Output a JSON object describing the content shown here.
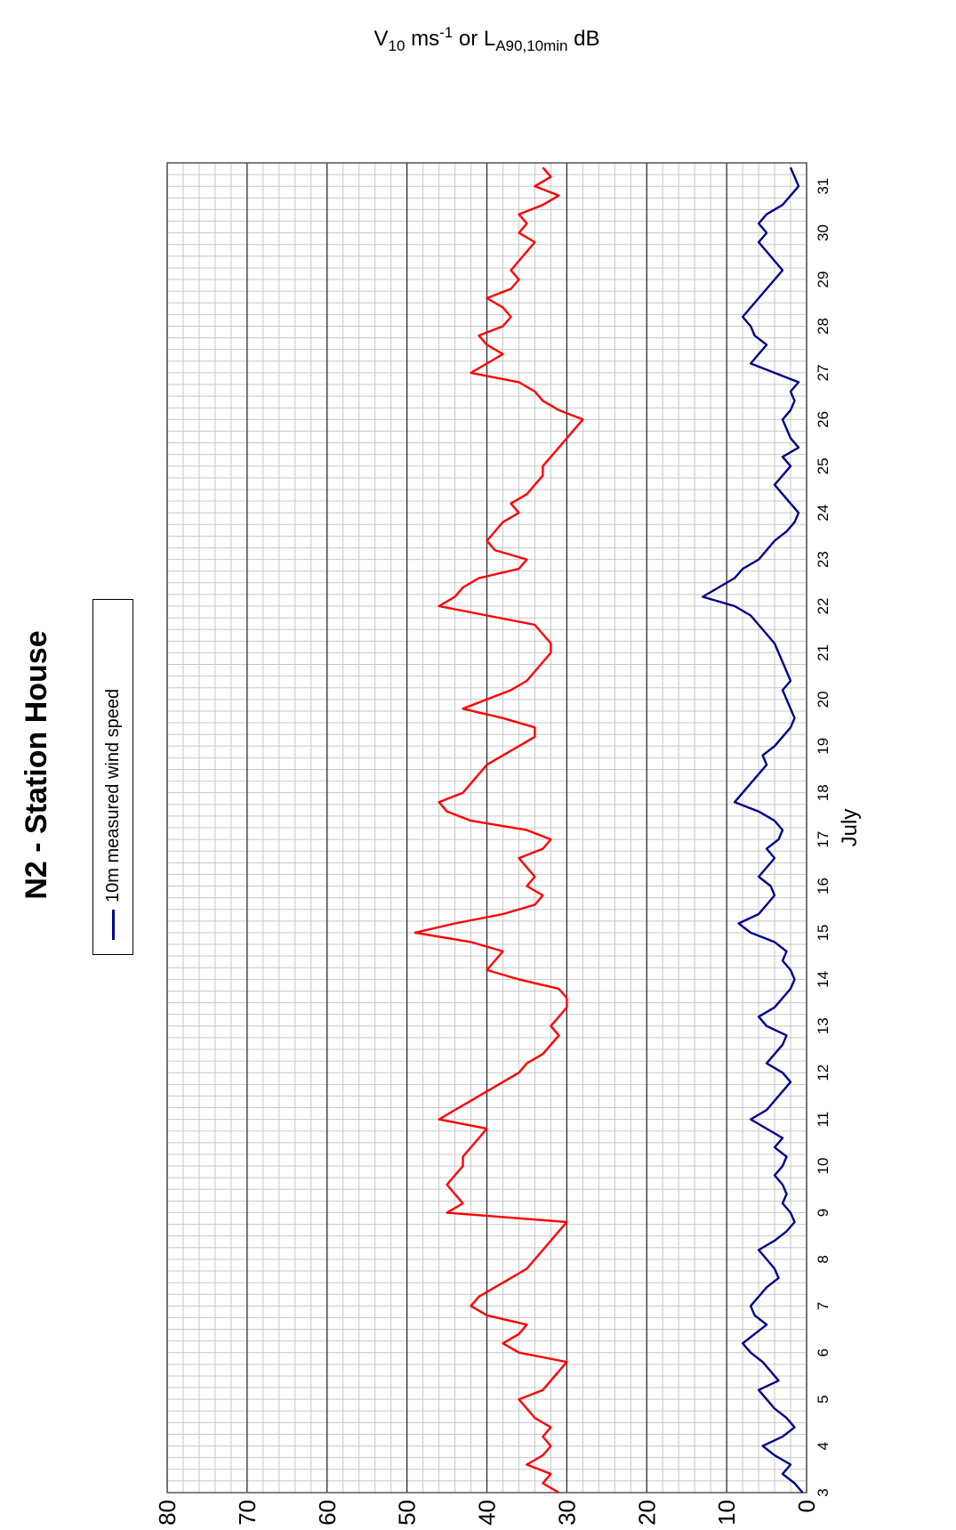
{
  "title": "N2 - Station House",
  "legend_label": "10m measured wind speed",
  "x_axis_label": "July",
  "y_axis_label": {
    "v": "V",
    "v_sub": "10",
    "unit_main": " ms",
    "unit_sup": "-1",
    "or": " or  L",
    "l_sub": "A90,10min",
    "db": " dB"
  },
  "chart_data": {
    "type": "line",
    "title": "N2 - Station House",
    "xlabel": "July",
    "ylabel": "V10 ms-1 or LA90,10min dB",
    "xlim": [
      3,
      31.5
    ],
    "ylim": [
      0,
      80
    ],
    "x_ticks": [
      "3",
      "4",
      "5",
      "6",
      "7",
      "8",
      "9",
      "10",
      "11",
      "12",
      "13",
      "14",
      "15",
      "16",
      "17",
      "18",
      "19",
      "20",
      "21",
      "22",
      "23",
      "24",
      "25",
      "26",
      "27",
      "28",
      "29",
      "30",
      "31"
    ],
    "y_ticks": [
      "0",
      "10",
      "20",
      "30",
      "40",
      "50",
      "60",
      "70",
      "80"
    ],
    "grid": true,
    "legend_position": "top-center",
    "colors": {
      "wind": "#00008b",
      "noise": "#ff0000"
    },
    "series": [
      {
        "name": "10m measured wind speed",
        "x": [
          3.0,
          3.2,
          3.4,
          3.6,
          3.8,
          4.0,
          4.2,
          4.4,
          4.6,
          4.8,
          5.0,
          5.2,
          5.4,
          5.6,
          5.8,
          6.0,
          6.2,
          6.4,
          6.6,
          6.8,
          7.0,
          7.2,
          7.4,
          7.6,
          7.8,
          8.0,
          8.2,
          8.4,
          8.6,
          8.8,
          9.0,
          9.2,
          9.4,
          9.6,
          9.8,
          10.0,
          10.2,
          10.4,
          10.6,
          10.8,
          11.0,
          11.2,
          11.4,
          11.6,
          11.8,
          12.0,
          12.2,
          12.4,
          12.6,
          12.8,
          13.0,
          13.2,
          13.4,
          13.6,
          13.8,
          14.0,
          14.2,
          14.4,
          14.6,
          14.8,
          15.0,
          15.2,
          15.4,
          15.6,
          15.8,
          16.0,
          16.2,
          16.4,
          16.6,
          16.8,
          17.0,
          17.2,
          17.4,
          17.6,
          17.8,
          18.0,
          18.2,
          18.4,
          18.6,
          18.8,
          19.0,
          19.2,
          19.4,
          19.6,
          19.8,
          20.0,
          20.2,
          20.4,
          20.6,
          20.8,
          21.0,
          21.2,
          21.4,
          21.6,
          21.8,
          22.0,
          22.2,
          22.4,
          22.6,
          22.8,
          23.0,
          23.2,
          23.4,
          23.6,
          23.8,
          24.0,
          24.2,
          24.4,
          24.6,
          24.8,
          25.0,
          25.2,
          25.4,
          25.6,
          25.8,
          26.0,
          26.2,
          26.4,
          26.6,
          26.8,
          27.0,
          27.2,
          27.4,
          27.6,
          27.8,
          28.0,
          28.2,
          28.4,
          28.6,
          28.8,
          29.0,
          29.2,
          29.4,
          29.6,
          29.8,
          30.0,
          30.2,
          30.4,
          30.6,
          30.8,
          31.0,
          31.2,
          31.4
        ],
        "values": [
          0.5,
          1.5,
          3,
          2,
          4,
          5.5,
          3,
          1.5,
          2.5,
          4,
          5,
          6,
          3.5,
          4.5,
          5.5,
          7,
          8,
          6.5,
          5,
          6.5,
          7,
          6,
          5,
          3.5,
          4,
          5,
          6,
          4,
          2.5,
          1.5,
          2,
          3,
          2.5,
          3,
          4,
          3,
          2.5,
          4,
          3,
          5,
          7,
          5,
          4,
          3,
          2,
          3,
          5,
          4,
          3,
          2.5,
          5,
          6,
          4,
          3,
          2,
          1.5,
          2,
          3,
          2.5,
          4,
          7,
          8.5,
          6,
          5,
          4,
          4.5,
          6,
          5,
          4,
          5,
          3.5,
          3,
          4,
          6,
          9,
          8,
          7,
          6,
          5,
          5.5,
          4,
          3,
          2,
          1.5,
          2,
          2.5,
          3,
          2,
          2.5,
          3,
          3.5,
          4,
          5,
          6,
          7,
          9,
          13,
          11,
          9,
          8,
          6,
          5,
          4,
          2.5,
          1.5,
          1,
          2,
          3,
          4,
          3,
          2,
          3,
          1,
          2,
          2.5,
          3,
          2,
          1.5,
          2,
          1,
          4,
          7,
          6,
          5,
          6.5,
          7,
          8,
          7,
          6,
          5,
          4,
          3,
          4,
          5,
          6,
          5,
          6,
          5,
          3,
          2,
          1,
          1.5,
          2
        ]
      },
      {
        "name": "",
        "x": [
          3.0,
          3.2,
          3.4,
          3.6,
          3.8,
          4.0,
          4.2,
          4.4,
          4.6,
          4.8,
          5.0,
          5.2,
          5.4,
          5.6,
          5.8,
          6.0,
          6.2,
          6.4,
          6.6,
          6.8,
          7.0,
          7.2,
          7.4,
          7.6,
          7.8,
          8.0,
          8.2,
          8.4,
          8.6,
          8.8,
          9.0,
          9.2,
          9.4,
          9.6,
          9.8,
          10.0,
          10.2,
          10.4,
          10.6,
          10.8,
          11.0,
          11.2,
          11.4,
          11.6,
          11.8,
          12.0,
          12.2,
          12.4,
          12.6,
          12.8,
          13.0,
          13.2,
          13.4,
          13.6,
          13.8,
          14.0,
          14.2,
          14.4,
          14.6,
          14.8,
          15.0,
          15.2,
          15.4,
          15.6,
          15.8,
          16.0,
          16.2,
          16.4,
          16.6,
          16.8,
          17.0,
          17.2,
          17.4,
          17.6,
          17.8,
          18.0,
          18.2,
          18.4,
          18.6,
          18.8,
          19.0,
          19.2,
          19.4,
          19.6,
          19.8,
          20.0,
          20.2,
          20.4,
          20.6,
          20.8,
          21.0,
          21.2,
          21.4,
          21.6,
          21.8,
          22.0,
          22.2,
          22.4,
          22.6,
          22.8,
          23.0,
          23.2,
          23.4,
          23.6,
          23.8,
          24.0,
          24.2,
          24.4,
          24.6,
          24.8,
          25.0,
          25.2,
          25.4,
          25.6,
          25.8,
          26.0,
          26.2,
          26.4,
          26.6,
          26.8,
          27.0,
          27.2,
          27.4,
          27.6,
          27.8,
          28.0,
          28.2,
          28.4,
          28.6,
          28.8,
          29.0,
          29.2,
          29.4,
          29.6,
          29.8,
          30.0,
          30.2,
          30.4,
          30.6,
          30.8,
          31.0,
          31.2,
          31.4
        ],
        "values": [
          31,
          33,
          32,
          35,
          33,
          32,
          33,
          32,
          34,
          35,
          36,
          33,
          32,
          31,
          30,
          36,
          38,
          36,
          35,
          40,
          42,
          41,
          39,
          37,
          35,
          34,
          33,
          32,
          31,
          30,
          45,
          43,
          44,
          45,
          44,
          43,
          43,
          42,
          41,
          40,
          46,
          44,
          42,
          40,
          38,
          36,
          35,
          33,
          32,
          31,
          32,
          31,
          30,
          30,
          31,
          36,
          40,
          39,
          38,
          42,
          49,
          44,
          38,
          34,
          33,
          35,
          34,
          35,
          36,
          33,
          32,
          35,
          42,
          45,
          46,
          43,
          42,
          41,
          40,
          38,
          36,
          34,
          34,
          38,
          43,
          40,
          37,
          35,
          34,
          33,
          32,
          32,
          33,
          34,
          40,
          46,
          44,
          43,
          41,
          36,
          35,
          39,
          40,
          39,
          38,
          36,
          37,
          35,
          34,
          33,
          33,
          32,
          31,
          30,
          29,
          28,
          31,
          33,
          34,
          36,
          42,
          40,
          38,
          40,
          41,
          38,
          37,
          38,
          40,
          37,
          36,
          37,
          36,
          35,
          34,
          36,
          35,
          36,
          33,
          31,
          34,
          32,
          33
        ]
      }
    ]
  }
}
